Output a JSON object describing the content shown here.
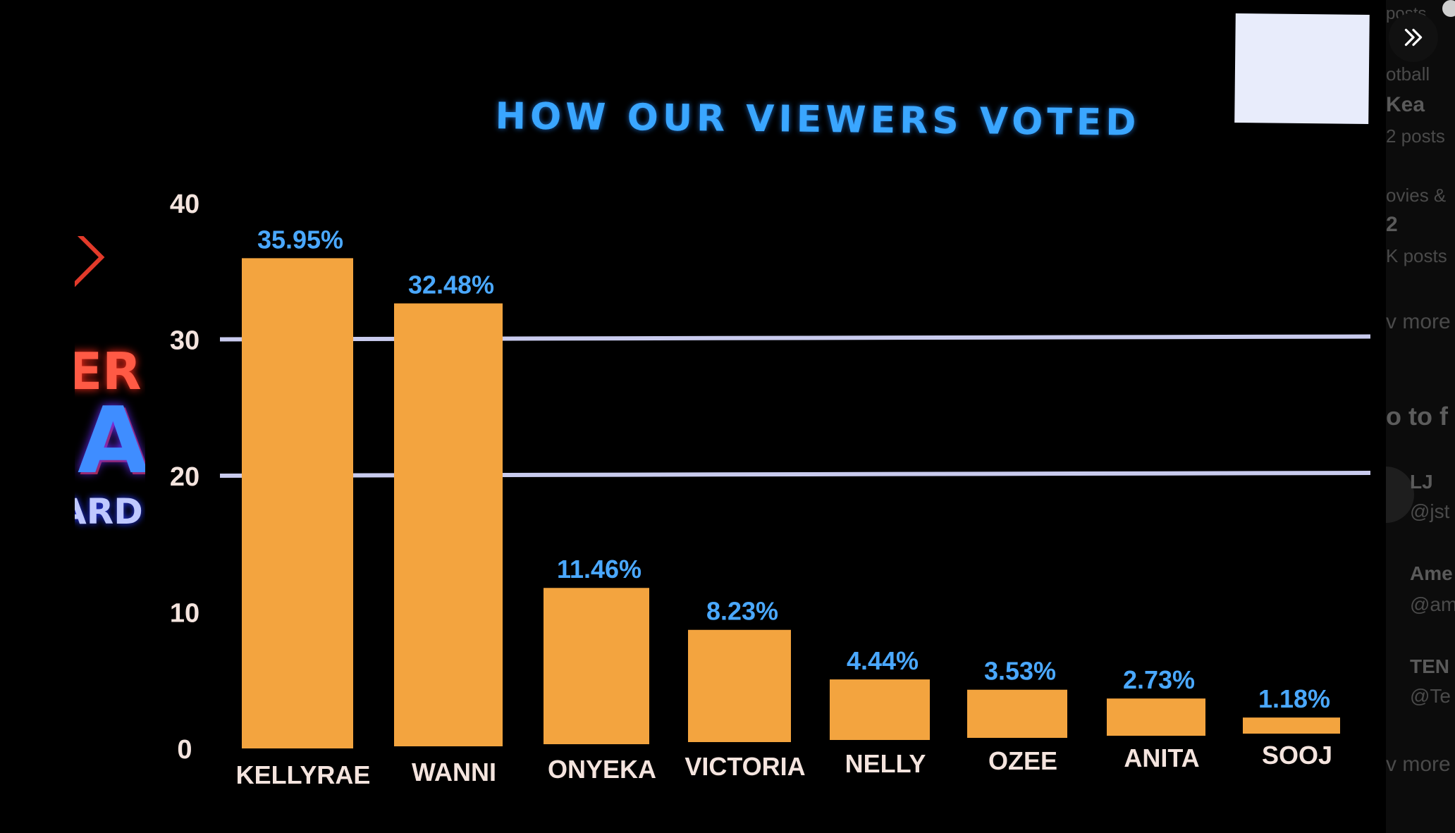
{
  "colors": {
    "background": "#000000",
    "bar": "#f3a43f",
    "value_label": "#4aa8ff",
    "axis_text": "#f4e4de",
    "gridline": "#c9cbee",
    "title": "#3aa6ff"
  },
  "side_panel": {
    "expand_icon": "double-chevron-right-icon",
    "lines": [
      "posts",
      "otball",
      "Kea",
      "2 posts",
      "ovies &",
      "2",
      "K posts",
      "v more",
      "o to f",
      "LJ",
      "@jst",
      "Ame",
      "@am",
      "TEN",
      "@Te",
      "v more"
    ]
  },
  "chart_data": {
    "type": "bar",
    "title": "HOW OUR VIEWERS VOTED",
    "xlabel": "",
    "ylabel": "",
    "categories": [
      "KELLYRAE",
      "WANNI",
      "ONYEKA",
      "VICTORIA",
      "NELLY",
      "OZEE",
      "ANITA",
      "SOOJ"
    ],
    "values": [
      35.95,
      32.48,
      11.46,
      8.23,
      4.44,
      3.53,
      2.73,
      1.18
    ],
    "value_labels": [
      "35.95%",
      "32.48%",
      "11.46%",
      "8.23%",
      "4.44%",
      "3.53%",
      "2.73%",
      "1.18%"
    ],
    "yticks": [
      "0",
      "10",
      "20",
      "30",
      "40"
    ],
    "ylim": [
      0,
      40
    ],
    "gridlines": [
      20,
      30
    ],
    "legend": "none"
  }
}
